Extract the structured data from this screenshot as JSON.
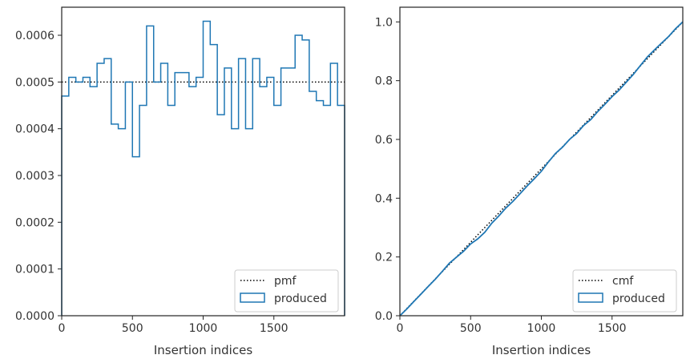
{
  "chart_data": [
    {
      "type": "line",
      "subtype": "histogram-step",
      "xlabel": "Insertion indices",
      "ylabel": "",
      "xlim": [
        0,
        2000
      ],
      "ylim": [
        0,
        0.00066
      ],
      "xticks": [
        0,
        500,
        1000,
        1500
      ],
      "xtick_labels": [
        "0",
        "500",
        "1000",
        "1500"
      ],
      "yticks": [
        0,
        0.0001,
        0.0002,
        0.0003,
        0.0004,
        0.0005,
        0.0006
      ],
      "ytick_labels": [
        "0.0000",
        "0.0001",
        "0.0002",
        "0.0003",
        "0.0004",
        "0.0005",
        "0.0006"
      ],
      "bin_width": 50,
      "legend_position": "lower-right",
      "series": [
        {
          "name": "pmf",
          "style": "dotted",
          "color": "#000000",
          "x": [
            0,
            2000
          ],
          "values": [
            0.0005,
            0.0005
          ]
        },
        {
          "name": "produced",
          "style": "step",
          "color": "#1f77b4",
          "bin_edges_start": 0,
          "values": [
            0.00047,
            0.00051,
            0.0005,
            0.00051,
            0.00049,
            0.00054,
            0.00055,
            0.00041,
            0.0004,
            0.0005,
            0.00034,
            0.00045,
            0.00062,
            0.0005,
            0.00054,
            0.00045,
            0.00052,
            0.00052,
            0.00049,
            0.00051,
            0.00063,
            0.00058,
            0.00043,
            0.00053,
            0.0004,
            0.00055,
            0.0004,
            0.00055,
            0.00049,
            0.00051,
            0.00045,
            0.00053,
            0.00053,
            0.0006,
            0.00059,
            0.00048,
            0.00046,
            0.00045,
            0.00054,
            0.00045
          ]
        }
      ]
    },
    {
      "type": "line",
      "subtype": "cumulative-step",
      "xlabel": "Insertion indices",
      "ylabel": "",
      "xlim": [
        0,
        2000
      ],
      "ylim": [
        0,
        1.05
      ],
      "xticks": [
        0,
        500,
        1000,
        1500
      ],
      "xtick_labels": [
        "0",
        "500",
        "1000",
        "1500"
      ],
      "yticks": [
        0,
        0.2,
        0.4,
        0.6,
        0.8,
        1.0
      ],
      "ytick_labels": [
        "0.0",
        "0.2",
        "0.4",
        "0.6",
        "0.8",
        "1.0"
      ],
      "legend_position": "lower-right",
      "series": [
        {
          "name": "cmf",
          "style": "dotted",
          "color": "#000000",
          "x": [
            0,
            2000
          ],
          "values": [
            0,
            1.0
          ]
        },
        {
          "name": "produced",
          "style": "step",
          "color": "#1f77b4",
          "derived_from": "cumulative sum of left panel 'produced' series"
        }
      ]
    }
  ]
}
